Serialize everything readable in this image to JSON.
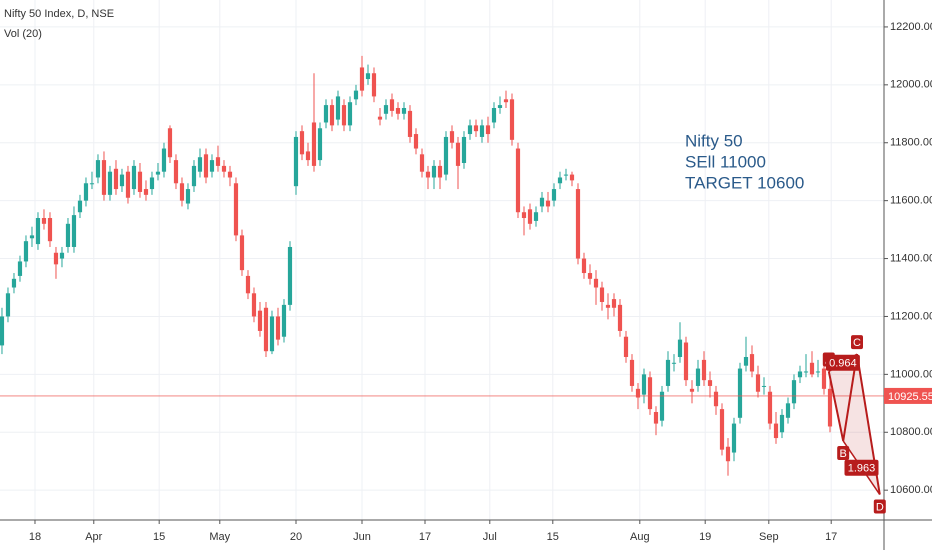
{
  "chart_data": {
    "type": "candlestick",
    "title": "Nifty 50 Index, D, NSE",
    "subtitle": "Vol (20)",
    "up_color": "#26a69a",
    "down_color": "#ef5350",
    "grid": true,
    "annotations": [
      "Nifty 50",
      "SEll 11000",
      "TARGET 10600"
    ],
    "last_price": 10925.55,
    "last_price_color": "#ef5350",
    "xlim": [
      -0.33,
      147
    ],
    "ylim": [
      10497,
      12293
    ],
    "yticks": [
      {
        "value": 10600,
        "label": "10600.00"
      },
      {
        "value": 10800,
        "label": "10800.00"
      },
      {
        "value": 11000,
        "label": "11000.00"
      },
      {
        "value": 11200,
        "label": "11200.00"
      },
      {
        "value": 11400,
        "label": "11400.00"
      },
      {
        "value": 11600,
        "label": "11600.00"
      },
      {
        "value": 11800,
        "label": "11800.00"
      },
      {
        "value": 12000,
        "label": "12000.00"
      },
      {
        "value": 12200,
        "label": "12200.00"
      }
    ],
    "xticks": [
      {
        "value": 5.5,
        "label": "18"
      },
      {
        "value": 15.3,
        "label": "Apr"
      },
      {
        "value": 26.2,
        "label": "15"
      },
      {
        "value": 36.3,
        "label": "May"
      },
      {
        "value": 49,
        "label": "20"
      },
      {
        "value": 60,
        "label": "Jun"
      },
      {
        "value": 70.5,
        "label": "17"
      },
      {
        "value": 81.3,
        "label": "Jul"
      },
      {
        "value": 91.8,
        "label": "15"
      },
      {
        "value": 106.3,
        "label": "Aug"
      },
      {
        "value": 117.2,
        "label": "19"
      },
      {
        "value": 127.8,
        "label": "Sep"
      },
      {
        "value": 138.2,
        "label": "17"
      }
    ],
    "pattern": {
      "color": "#b71c1c",
      "points": [
        {
          "label": "A",
          "x": 137.8,
          "y": 11010
        },
        {
          "label": "B",
          "x": 140.2,
          "y": 10770
        },
        {
          "label": "C",
          "x": 142.5,
          "y": 11070
        },
        {
          "label": "D",
          "x": 146.3,
          "y": 10585
        }
      ],
      "ratios": [
        "0.964",
        "1.963"
      ]
    },
    "candles": [
      [
        11100,
        11230,
        11070,
        11200
      ],
      [
        11200,
        11300,
        11180,
        11280
      ],
      [
        11300,
        11350,
        11280,
        11330
      ],
      [
        11340,
        11410,
        11320,
        11390
      ],
      [
        11390,
        11480,
        11370,
        11460
      ],
      [
        11470,
        11510,
        11440,
        11480
      ],
      [
        11450,
        11560,
        11430,
        11540
      ],
      [
        11540,
        11570,
        11500,
        11520
      ],
      [
        11540,
        11560,
        11440,
        11460
      ],
      [
        11420,
        11440,
        11330,
        11380
      ],
      [
        11400,
        11440,
        11370,
        11420
      ],
      [
        11440,
        11540,
        11420,
        11520
      ],
      [
        11440,
        11580,
        11420,
        11550
      ],
      [
        11560,
        11620,
        11540,
        11600
      ],
      [
        11600,
        11680,
        11580,
        11660
      ],
      [
        11660,
        11700,
        11640,
        11660
      ],
      [
        11680,
        11760,
        11660,
        11740
      ],
      [
        11740,
        11770,
        11600,
        11620
      ],
      [
        11620,
        11720,
        11600,
        11700
      ],
      [
        11710,
        11740,
        11620,
        11640
      ],
      [
        11650,
        11710,
        11630,
        11690
      ],
      [
        11700,
        11720,
        11590,
        11610
      ],
      [
        11640,
        11740,
        11620,
        11720
      ],
      [
        11700,
        11730,
        11610,
        11630
      ],
      [
        11640,
        11670,
        11600,
        11620
      ],
      [
        11640,
        11700,
        11620,
        11680
      ],
      [
        11690,
        11730,
        11670,
        11700
      ],
      [
        11700,
        11800,
        11680,
        11780
      ],
      [
        11850,
        11860,
        11730,
        11750
      ],
      [
        11740,
        11760,
        11640,
        11660
      ],
      [
        11660,
        11680,
        11580,
        11600
      ],
      [
        11590,
        11660,
        11570,
        11640
      ],
      [
        11650,
        11740,
        11630,
        11720
      ],
      [
        11700,
        11780,
        11680,
        11750
      ],
      [
        11760,
        11780,
        11660,
        11680
      ],
      [
        11700,
        11760,
        11680,
        11740
      ],
      [
        11750,
        11790,
        11700,
        11720
      ],
      [
        11720,
        11740,
        11680,
        11700
      ],
      [
        11700,
        11720,
        11650,
        11680
      ],
      [
        11660,
        11680,
        11460,
        11480
      ],
      [
        11480,
        11500,
        11340,
        11360
      ],
      [
        11340,
        11360,
        11260,
        11280
      ],
      [
        11280,
        11300,
        11180,
        11200
      ],
      [
        11220,
        11250,
        11130,
        11150
      ],
      [
        11230,
        11250,
        11060,
        11080
      ],
      [
        11080,
        11220,
        11070,
        11200
      ],
      [
        11200,
        11230,
        11100,
        11120
      ],
      [
        11130,
        11260,
        11110,
        11240
      ],
      [
        11240,
        11460,
        11220,
        11440
      ],
      [
        11650,
        11840,
        11620,
        11820
      ],
      [
        11840,
        11860,
        11740,
        11760
      ],
      [
        11770,
        11800,
        11720,
        11740
      ],
      [
        11870,
        12040,
        11700,
        11720
      ],
      [
        11740,
        11870,
        11720,
        11850
      ],
      [
        11870,
        11950,
        11850,
        11930
      ],
      [
        11930,
        11950,
        11840,
        11860
      ],
      [
        11880,
        11980,
        11860,
        11960
      ],
      [
        11930,
        11950,
        11840,
        11860
      ],
      [
        11860,
        11960,
        11840,
        11940
      ],
      [
        11950,
        12000,
        11930,
        11980
      ],
      [
        12060,
        12100,
        11960,
        11980
      ],
      [
        12020,
        12070,
        12000,
        12040
      ],
      [
        12040,
        12060,
        11940,
        11960
      ],
      [
        11890,
        11920,
        11860,
        11880
      ],
      [
        11900,
        11950,
        11880,
        11930
      ],
      [
        11950,
        11970,
        11890,
        11910
      ],
      [
        11920,
        11940,
        11880,
        11900
      ],
      [
        11900,
        11940,
        11880,
        11920
      ],
      [
        11910,
        11930,
        11800,
        11820
      ],
      [
        11830,
        11850,
        11760,
        11780
      ],
      [
        11760,
        11780,
        11680,
        11700
      ],
      [
        11700,
        11720,
        11640,
        11680
      ],
      [
        11680,
        11740,
        11640,
        11720
      ],
      [
        11720,
        11740,
        11640,
        11680
      ],
      [
        11690,
        11840,
        11670,
        11820
      ],
      [
        11840,
        11860,
        11780,
        11800
      ],
      [
        11800,
        11820,
        11640,
        11720
      ],
      [
        11730,
        11840,
        11710,
        11820
      ],
      [
        11830,
        11880,
        11810,
        11860
      ],
      [
        11860,
        11880,
        11820,
        11840
      ],
      [
        11820,
        11880,
        11800,
        11860
      ],
      [
        11860,
        11890,
        11800,
        11830
      ],
      [
        11870,
        11940,
        11850,
        11920
      ],
      [
        11920,
        11960,
        11900,
        11930
      ],
      [
        11950,
        11980,
        11920,
        11940
      ],
      [
        11950,
        11970,
        11790,
        11810
      ],
      [
        11780,
        11800,
        11540,
        11560
      ],
      [
        11560,
        11580,
        11480,
        11540
      ],
      [
        11570,
        11590,
        11500,
        11520
      ],
      [
        11530,
        11580,
        11510,
        11560
      ],
      [
        11580,
        11630,
        11560,
        11610
      ],
      [
        11600,
        11630,
        11560,
        11580
      ],
      [
        11600,
        11660,
        11580,
        11640
      ],
      [
        11660,
        11700,
        11640,
        11680
      ],
      [
        11690,
        11710,
        11670,
        11690
      ],
      [
        11690,
        11700,
        11650,
        11670
      ],
      [
        11640,
        11660,
        11380,
        11400
      ],
      [
        11400,
        11420,
        11330,
        11350
      ],
      [
        11350,
        11380,
        11310,
        11330
      ],
      [
        11330,
        11360,
        11240,
        11300
      ],
      [
        11300,
        11320,
        11220,
        11250
      ],
      [
        11240,
        11280,
        11190,
        11230
      ],
      [
        11260,
        11280,
        11200,
        11230
      ],
      [
        11240,
        11260,
        11130,
        11150
      ],
      [
        11130,
        11150,
        11040,
        11060
      ],
      [
        11050,
        11070,
        10940,
        10960
      ],
      [
        10950,
        10970,
        10880,
        10920
      ],
      [
        10930,
        11020,
        10900,
        11000
      ],
      [
        10990,
        11010,
        10860,
        10880
      ],
      [
        10870,
        10890,
        10790,
        10830
      ],
      [
        10840,
        10960,
        10820,
        10940
      ],
      [
        10960,
        11080,
        10940,
        11050
      ],
      [
        11040,
        11070,
        11010,
        11040
      ],
      [
        11060,
        11180,
        11040,
        11120
      ],
      [
        11110,
        11130,
        10960,
        10980
      ],
      [
        10950,
        10980,
        10900,
        10940
      ],
      [
        10960,
        11050,
        10940,
        11020
      ],
      [
        11050,
        11080,
        10960,
        10980
      ],
      [
        10980,
        11010,
        10920,
        10960
      ],
      [
        10940,
        10960,
        10860,
        10890
      ],
      [
        10880,
        10900,
        10720,
        10740
      ],
      [
        10750,
        10780,
        10650,
        10700
      ],
      [
        10730,
        10850,
        10700,
        10830
      ],
      [
        10850,
        11040,
        10830,
        11020
      ],
      [
        11030,
        11130,
        11010,
        11060
      ],
      [
        11070,
        11100,
        10990,
        11010
      ],
      [
        11000,
        11030,
        10920,
        10940
      ],
      [
        10960,
        10990,
        10930,
        10960
      ],
      [
        10940,
        10960,
        10810,
        10830
      ],
      [
        10830,
        10870,
        10760,
        10780
      ],
      [
        10800,
        10880,
        10780,
        10860
      ],
      [
        10850,
        10920,
        10830,
        10900
      ],
      [
        10900,
        11000,
        10880,
        10980
      ],
      [
        10990,
        11030,
        10970,
        11010
      ],
      [
        11010,
        11070,
        10990,
        11010
      ],
      [
        11040,
        11080,
        10990,
        11000
      ],
      [
        11010,
        11050,
        10990,
        11010
      ],
      [
        11020,
        11040,
        10930,
        10950
      ],
      [
        10950,
        10990,
        10800,
        10820
      ]
    ]
  }
}
